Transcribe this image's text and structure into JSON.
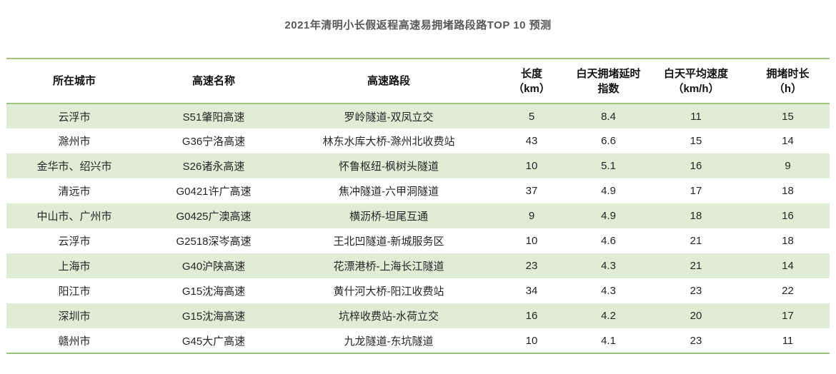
{
  "title": "2021年清明小长假返程高速易拥堵路段路TOP 10 预测",
  "colors": {
    "line_green": "#9cc37e",
    "row_green": "#dfecd6",
    "title_color": "#595959",
    "text_color": "#262626",
    "background": "#ffffff"
  },
  "chart_data": {
    "type": "table",
    "title": "2021年清明小长假返程高速易拥堵路段路TOP 10 预测",
    "layout_hints": {
      "header_border": "green horizontal rules top and bottom",
      "row_striping": "odd rows light green, even rows white",
      "alignment": "all cells centered"
    },
    "columns": [
      {
        "key": "city",
        "line1": "所在城市",
        "line2": ""
      },
      {
        "key": "name",
        "line1": "高速名称",
        "line2": ""
      },
      {
        "key": "segment",
        "line1": "高速路段",
        "line2": ""
      },
      {
        "key": "length",
        "line1": "长度",
        "line2": "（km）"
      },
      {
        "key": "delay",
        "line1": "白天拥堵延时",
        "line2": "指数"
      },
      {
        "key": "speed",
        "line1": "白天平均速度",
        "line2": "（km/h）"
      },
      {
        "key": "duration",
        "line1": "拥堵时长",
        "line2": "（h）"
      }
    ],
    "rows": [
      [
        "云浮市",
        "S51肇阳高速",
        "罗岭隧道-双凤立交",
        "5",
        "8.4",
        "11",
        "15"
      ],
      [
        "滁州市",
        "G36宁洛高速",
        "林东水库大桥-滁州北收费站",
        "43",
        "6.6",
        "15",
        "14"
      ],
      [
        "金华市、绍兴市",
        "S26诸永高速",
        "怀鲁枢纽-枫树头隧道",
        "10",
        "5.1",
        "16",
        "9"
      ],
      [
        "清远市",
        "G0421许广高速",
        "焦冲隧道-六甲洞隧道",
        "37",
        "4.9",
        "17",
        "18"
      ],
      [
        "中山市、广州市",
        "G0425广澳高速",
        "横沥桥-坦尾互通",
        "9",
        "4.9",
        "18",
        "16"
      ],
      [
        "云浮市",
        "G2518深岑高速",
        "王北凹隧道-新城服务区",
        "10",
        "4.6",
        "21",
        "18"
      ],
      [
        "上海市",
        "G40沪陕高速",
        "花漂港桥-上海长江隧道",
        "23",
        "4.3",
        "21",
        "14"
      ],
      [
        "阳江市",
        "G15沈海高速",
        "黄什河大桥-阳江收费站",
        "34",
        "4.3",
        "23",
        "22"
      ],
      [
        "深圳市",
        "G15沈海高速",
        "坑梓收费站-水荷立交",
        "16",
        "4.2",
        "20",
        "17"
      ],
      [
        "赣州市",
        "G45大广高速",
        "九龙隧道-东坑隧道",
        "10",
        "4.1",
        "23",
        "11"
      ]
    ]
  }
}
